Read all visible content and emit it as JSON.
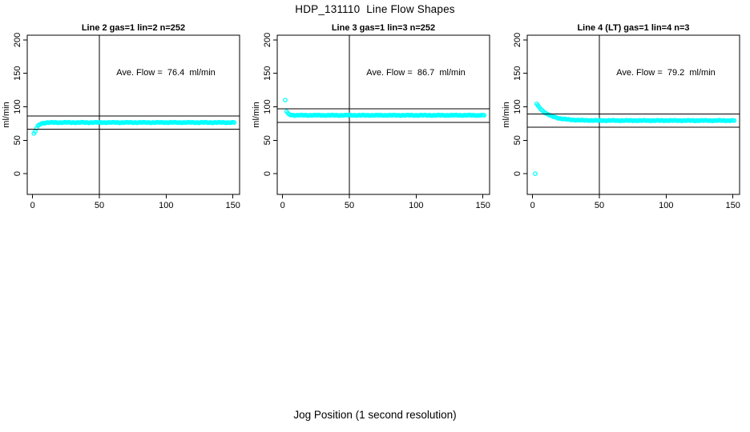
{
  "figure": {
    "title": "HDP_131110  Line Flow Shapes",
    "xlabel": "Jog Position (1 second resolution)"
  },
  "chart_data": [
    {
      "type": "scatter",
      "title": "Line 2 gas=1 lin=2 n=252",
      "annotation": "Ave. Flow =  76.4  ml/min",
      "mean_flow_ml_min": 76.4,
      "ylabel": "ml/min",
      "x_ticks": [
        0,
        50,
        100,
        150
      ],
      "y_ticks": [
        0,
        50,
        100,
        150,
        200
      ],
      "xlim": [
        -4,
        155
      ],
      "ylim": [
        -31,
        207
      ],
      "vline_x": 50,
      "ref_lines": [
        86.4,
        66.4
      ],
      "marker_color": "#00FFFF",
      "axis_color": "#000000",
      "grid": false,
      "first_points": [
        [
          1,
          60
        ]
      ],
      "trend": {
        "shape": "exponential-approach",
        "x_start": 2,
        "x_end": 151,
        "plateau": 76.5,
        "amplitude": -13.5,
        "tau": 2.2
      }
    },
    {
      "type": "scatter",
      "title": "Line 3 gas=1 lin=3 n=252",
      "annotation": "Ave. Flow =  86.7  ml/min",
      "mean_flow_ml_min": 86.7,
      "ylabel": "ml/min",
      "x_ticks": [
        0,
        50,
        100,
        150
      ],
      "y_ticks": [
        0,
        50,
        100,
        150,
        200
      ],
      "xlim": [
        -4,
        155
      ],
      "ylim": [
        -31,
        207
      ],
      "vline_x": 50,
      "ref_lines": [
        96.7,
        76.7
      ],
      "marker_color": "#00FFFF",
      "axis_color": "#000000",
      "grid": false,
      "first_points": [
        [
          2,
          110
        ]
      ],
      "trend": {
        "shape": "exponential-approach",
        "x_start": 3,
        "x_end": 151,
        "plateau": 87.3,
        "amplitude": 5.5,
        "tau": 1.3
      }
    },
    {
      "type": "scatter",
      "title": "Line 4 (LT) gas=1 lin=4 n=3",
      "annotation": "Ave. Flow =  79.2  ml/min",
      "mean_flow_ml_min": 79.2,
      "ylabel": "ml/min",
      "x_ticks": [
        0,
        50,
        100,
        150
      ],
      "y_ticks": [
        0,
        50,
        100,
        150,
        200
      ],
      "xlim": [
        -4,
        155
      ],
      "ylim": [
        -31,
        207
      ],
      "vline_x": 50,
      "ref_lines": [
        89.2,
        69.2
      ],
      "marker_color": "#00FFFF",
      "axis_color": "#000000",
      "grid": false,
      "first_points": [
        [
          2,
          0
        ]
      ],
      "trend": {
        "shape": "exponential-approach",
        "x_start": 3,
        "x_end": 151,
        "plateau": 79.4,
        "amplitude": 25,
        "tau": 8.5
      }
    }
  ]
}
